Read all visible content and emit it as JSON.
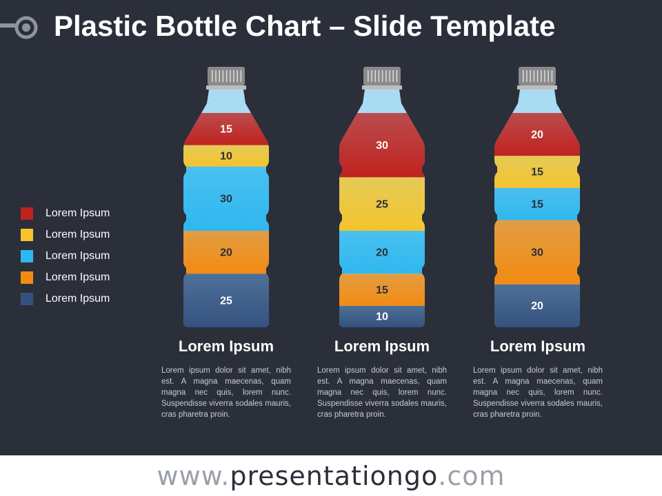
{
  "title": "Plastic Bottle Chart – Slide Template",
  "legend": [
    {
      "label": "Lorem Ipsum",
      "color": "#c0231f"
    },
    {
      "label": "Lorem Ipsum",
      "color": "#f5c42c"
    },
    {
      "label": "Lorem Ipsum",
      "color": "#2fb8ef"
    },
    {
      "label": "Lorem Ipsum",
      "color": "#f28b12"
    },
    {
      "label": "Lorem Ipsum",
      "color": "#34527f"
    }
  ],
  "chart_data": {
    "type": "bar",
    "stacked": true,
    "unit_total": 100,
    "categories": [
      "Lorem Ipsum",
      "Lorem Ipsum",
      "Lorem Ipsum"
    ],
    "series": [
      {
        "name": "Lorem Ipsum",
        "color": "#c0231f",
        "values": [
          15,
          30,
          20
        ]
      },
      {
        "name": "Lorem Ipsum",
        "color": "#f5c42c",
        "values": [
          10,
          25,
          15
        ]
      },
      {
        "name": "Lorem Ipsum",
        "color": "#2fb8ef",
        "values": [
          30,
          20,
          15
        ]
      },
      {
        "name": "Lorem Ipsum",
        "color": "#f28b12",
        "values": [
          20,
          15,
          30
        ]
      },
      {
        "name": "Lorem Ipsum",
        "color": "#34527f",
        "values": [
          25,
          10,
          20
        ]
      }
    ],
    "empty_color": "#a9dcf2",
    "cap_color": "#8a8a8a"
  },
  "columns": [
    {
      "label": "Lorem Ipsum",
      "desc": "Lorem ipsum dolor sit amet, nibh est. A magna maecenas, quam magna nec quis, lorem nunc. Suspendisse viverra sodales mauris, cras pharetra proin."
    },
    {
      "label": "Lorem Ipsum",
      "desc": "Lorem ipsum dolor sit amet, nibh est. A magna maecenas, quam magna nec quis, lorem nunc. Suspendisse viverra sodales mauris, cras pharetra proin."
    },
    {
      "label": "Lorem Ipsum",
      "desc": "Lorem ipsum dolor sit amet, nibh est. A magna maecenas, quam magna nec quis, lorem nunc. Suspendisse viverra sodales mauris, cras pharetra proin."
    }
  ],
  "footer": {
    "prefix": "www.",
    "brand": "presentationgo",
    "suffix": ".com"
  }
}
